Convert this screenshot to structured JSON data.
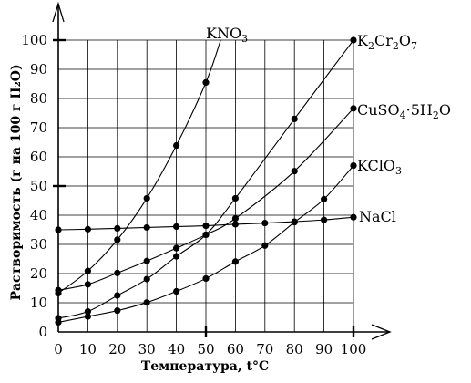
{
  "chart_data": {
    "type": "line",
    "xlabel": "Температура, t°C",
    "ylabel": "Растворимость (г на 100 г H₂O)",
    "xlim": [
      0,
      100
    ],
    "ylim": [
      0,
      100
    ],
    "x_ticks": [
      0,
      10,
      20,
      30,
      40,
      50,
      60,
      70,
      80,
      90,
      100
    ],
    "y_ticks": [
      0,
      10,
      20,
      30,
      40,
      50,
      60,
      70,
      80,
      90,
      100
    ],
    "grid": true,
    "series": [
      {
        "name": "KNO3",
        "label_parts": [
          {
            "t": "KNO"
          },
          {
            "t": "3",
            "sub": true
          }
        ],
        "x": [
          0,
          10,
          20,
          30,
          40,
          50
        ],
        "y": [
          13.3,
          20.9,
          31.6,
          45.8,
          63.9,
          85.5
        ],
        "curve_extension": [
          [
            55,
            100
          ]
        ]
      },
      {
        "name": "K2Cr2O7",
        "label_parts": [
          {
            "t": "K"
          },
          {
            "t": "2",
            "sub": true
          },
          {
            "t": "Cr"
          },
          {
            "t": "2",
            "sub": true
          },
          {
            "t": "O"
          },
          {
            "t": "7",
            "sub": true
          }
        ],
        "x": [
          0,
          10,
          20,
          30,
          40,
          50,
          60,
          80,
          100
        ],
        "y": [
          4.7,
          7.0,
          12.5,
          18.1,
          25.9,
          33.3,
          45.8,
          73.0,
          100.0
        ]
      },
      {
        "name": "CuSO4·5H2O",
        "label_parts": [
          {
            "t": "CuSO"
          },
          {
            "t": "4",
            "sub": true
          },
          {
            "t": "·5H"
          },
          {
            "t": "2",
            "sub": true
          },
          {
            "t": "O"
          }
        ],
        "x": [
          0,
          10,
          20,
          30,
          40,
          50,
          60,
          80,
          100
        ],
        "y": [
          14.3,
          16.3,
          20.2,
          24.3,
          28.7,
          33.3,
          38.9,
          55.1,
          76.6
        ]
      },
      {
        "name": "KClO3",
        "label_parts": [
          {
            "t": "KClO"
          },
          {
            "t": "3",
            "sub": true
          }
        ],
        "x": [
          0,
          10,
          20,
          30,
          40,
          50,
          60,
          70,
          80,
          90,
          100
        ],
        "y": [
          3.3,
          5.3,
          7.3,
          10.1,
          13.9,
          18.3,
          24.1,
          29.6,
          37.6,
          45.5,
          57.0
        ]
      },
      {
        "name": "NaCl",
        "label_parts": [
          {
            "t": "NaCl"
          }
        ],
        "x": [
          0,
          10,
          20,
          30,
          40,
          50,
          60,
          70,
          80,
          90,
          100
        ],
        "y": [
          35.0,
          35.2,
          35.5,
          35.8,
          36.1,
          36.4,
          36.9,
          37.3,
          37.8,
          38.4,
          39.3
        ]
      }
    ]
  }
}
